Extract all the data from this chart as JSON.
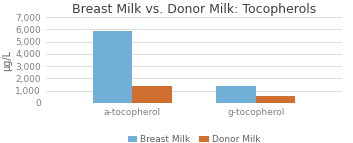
{
  "title": "Breast Milk vs. Donor Milk: Tocopherols",
  "categories": [
    "a-tocopherol",
    "g-tocopherol"
  ],
  "breast_milk": [
    5850,
    1350
  ],
  "donor_milk": [
    1350,
    600
  ],
  "breast_milk_color": "#70b0d8",
  "donor_milk_color": "#d07030",
  "ylabel": "μg/L",
  "ylim": [
    0,
    7000
  ],
  "yticks": [
    0,
    1000,
    2000,
    3000,
    4000,
    5000,
    6000,
    7000
  ],
  "ytick_labels": [
    "0",
    "1,000",
    "2,000",
    "3,000",
    "4,000",
    "5,000",
    "6,000",
    "7,000"
  ],
  "legend_labels": [
    "Breast Milk",
    "Donor Milk"
  ],
  "bar_width": 0.32,
  "title_fontsize": 9,
  "label_fontsize": 7,
  "tick_fontsize": 6.5,
  "legend_fontsize": 6.5,
  "background_color": "#ffffff",
  "grid_color": "#d0d0d0"
}
